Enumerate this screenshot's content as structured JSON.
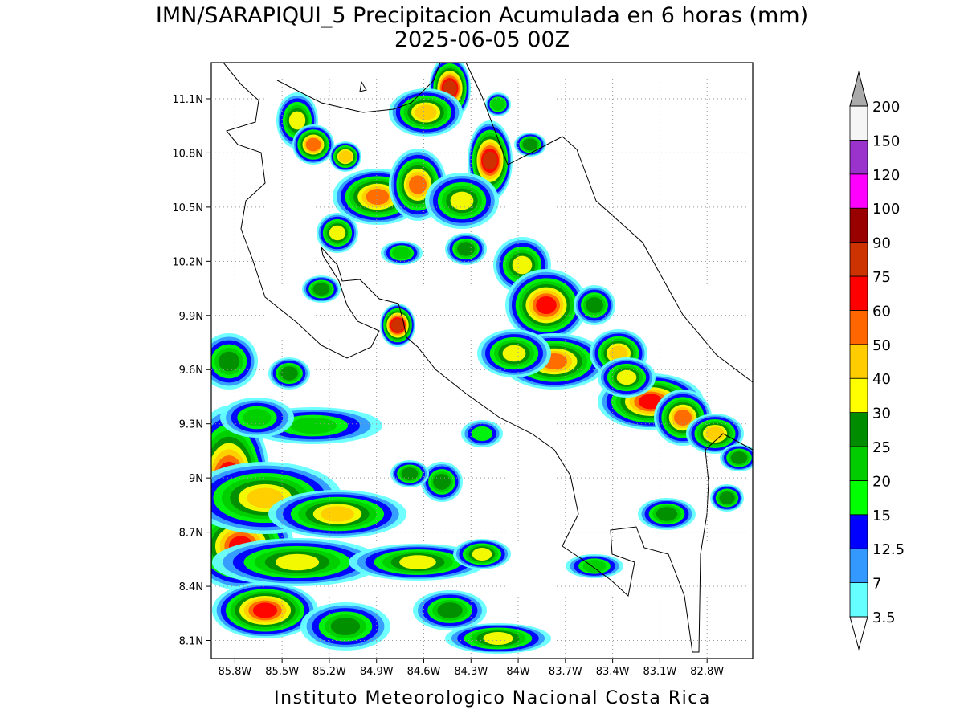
{
  "map": {
    "title": "IMN/SARAPIQUI_5 Precipitacion Acumulada en 6 horas (mm)",
    "subtitle": "2025-06-05 00Z",
    "footer": "Instituto Meteorologico Nacional Costa Rica",
    "xlim": [
      -85.95,
      -82.51
    ],
    "ylim": [
      8.0,
      11.3
    ],
    "grid": true,
    "xticks": [
      {
        "value": -85.8,
        "label": "85.8W"
      },
      {
        "value": -85.5,
        "label": "85.5W"
      },
      {
        "value": -85.2,
        "label": "85.2W"
      },
      {
        "value": -84.9,
        "label": "84.9W"
      },
      {
        "value": -84.6,
        "label": "84.6W"
      },
      {
        "value": -84.3,
        "label": "84.3W"
      },
      {
        "value": -84.0,
        "label": "84W"
      },
      {
        "value": -83.7,
        "label": "83.7W"
      },
      {
        "value": -83.4,
        "label": "83.4W"
      },
      {
        "value": -83.1,
        "label": "83.1W"
      },
      {
        "value": -82.8,
        "label": "82.8W"
      }
    ],
    "yticks": [
      {
        "value": 8.1,
        "label": "8.1N"
      },
      {
        "value": 8.4,
        "label": "8.4N"
      },
      {
        "value": 8.7,
        "label": "8.7N"
      },
      {
        "value": 9.0,
        "label": "9N"
      },
      {
        "value": 9.3,
        "label": "9.3N"
      },
      {
        "value": 9.6,
        "label": "9.6N"
      },
      {
        "value": 9.9,
        "label": "9.9N"
      },
      {
        "value": 10.2,
        "label": "10.2N"
      },
      {
        "value": 10.5,
        "label": "10.5N"
      },
      {
        "value": 10.8,
        "label": "10.8N"
      },
      {
        "value": 11.1,
        "label": "11.1N"
      }
    ],
    "colorbar": {
      "levels": [
        3.5,
        7,
        12.5,
        15,
        20,
        25,
        30,
        40,
        50,
        60,
        75,
        90,
        100,
        120,
        150,
        200
      ],
      "colors": [
        "#66ffff",
        "#3399ff",
        "#0000ff",
        "#00ff00",
        "#00cc00",
        "#008c00",
        "#ffff00",
        "#ffcc00",
        "#ff6600",
        "#ff0000",
        "#cc3300",
        "#990000",
        "#ff00ff",
        "#9933cc",
        "#f5f5f5"
      ],
      "under_color": "#ffffff",
      "over_color": "#aaaaaa"
    }
  }
}
